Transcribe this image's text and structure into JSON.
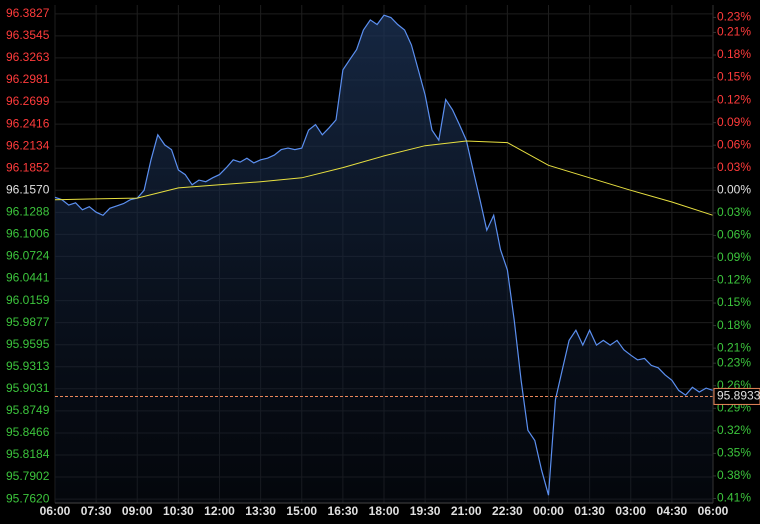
{
  "chart_data": {
    "type": "line",
    "base": 96.157,
    "positive_color": "#ff3b3b",
    "negative_color": "#3cc43c",
    "neutral_color": "#e0e0e0",
    "grid": true,
    "last_price": 95.8933,
    "last_price_color": "#e8865a",
    "xlim": [
      0,
      1440
    ],
    "xticks": [
      {
        "value": 0,
        "label": "06:00"
      },
      {
        "value": 90,
        "label": "07:30"
      },
      {
        "value": 180,
        "label": "09:00"
      },
      {
        "value": 270,
        "label": "10:30"
      },
      {
        "value": 360,
        "label": "12:00"
      },
      {
        "value": 450,
        "label": "13:30"
      },
      {
        "value": 540,
        "label": "15:00"
      },
      {
        "value": 630,
        "label": "16:30"
      },
      {
        "value": 720,
        "label": "18:00"
      },
      {
        "value": 810,
        "label": "19:30"
      },
      {
        "value": 900,
        "label": "21:00"
      },
      {
        "value": 990,
        "label": "22:30"
      },
      {
        "value": 1080,
        "label": "00:00"
      },
      {
        "value": 1170,
        "label": "01:30"
      },
      {
        "value": 1260,
        "label": "03:00"
      },
      {
        "value": 1350,
        "label": "04:30"
      },
      {
        "value": 1440,
        "label": "06:00"
      }
    ],
    "ylim": [
      95.757,
      96.394
    ],
    "yticks": [
      96.3827,
      96.3545,
      96.3263,
      96.2981,
      96.2699,
      96.2416,
      96.2134,
      96.1852,
      {
        "value": 96.157,
        "label": "96.1570"
      },
      96.1288,
      96.1006,
      96.0724,
      96.0441,
      96.0159,
      95.9877,
      95.9595,
      95.9313,
      95.9031,
      95.8749,
      95.8466,
      95.8184,
      95.7902,
      {
        "value": 95.762,
        "label": "95.7620"
      }
    ],
    "y2lim": [
      -0.416,
      0.2465
    ],
    "y2ticks": [
      {
        "value": 0.23,
        "label": "0.23%"
      },
      {
        "value": 0.21,
        "label": "0.21%"
      },
      {
        "value": 0.18,
        "label": "0.18%"
      },
      {
        "value": 0.15,
        "label": "0.15%"
      },
      {
        "value": 0.12,
        "label": "0.12%"
      },
      {
        "value": 0.09,
        "label": "0.09%"
      },
      {
        "value": 0.06,
        "label": "0.06%"
      },
      {
        "value": 0.03,
        "label": "0.03%"
      },
      {
        "value": 0,
        "label": "0.00%"
      },
      {
        "value": -0.03,
        "label": "0.03%"
      },
      {
        "value": -0.06,
        "label": "0.06%"
      },
      {
        "value": -0.09,
        "label": "0.09%"
      },
      {
        "value": -0.12,
        "label": "0.12%"
      },
      {
        "value": -0.15,
        "label": "0.15%"
      },
      {
        "value": -0.18,
        "label": "0.18%"
      },
      {
        "value": -0.21,
        "label": "0.21%"
      },
      {
        "value": -0.23,
        "label": "0.23%"
      },
      {
        "value": -0.26,
        "label": "0.26%"
      },
      {
        "value": -0.29,
        "label": "0.29%"
      },
      {
        "value": -0.32,
        "label": "0.32%"
      },
      {
        "value": -0.35,
        "label": "0.35%"
      },
      {
        "value": -0.38,
        "label": "0.38%"
      },
      {
        "value": -0.41,
        "label": "0.41%"
      }
    ],
    "series": [
      {
        "color": "#5b8ff0",
        "x": [
          0,
          15,
          30,
          45,
          60,
          75,
          90,
          105,
          120,
          135,
          150,
          165,
          180,
          195,
          210,
          225,
          240,
          255,
          270,
          285,
          300,
          315,
          330,
          345,
          360,
          375,
          390,
          405,
          420,
          435,
          450,
          465,
          480,
          495,
          510,
          525,
          540,
          555,
          570,
          585,
          600,
          615,
          630,
          645,
          660,
          675,
          690,
          705,
          720,
          735,
          750,
          765,
          780,
          795,
          810,
          825,
          840,
          855,
          870,
          885,
          900,
          915,
          930,
          945,
          960,
          975,
          990,
          1005,
          1020,
          1035,
          1050,
          1065,
          1080,
          1095,
          1110,
          1125,
          1140,
          1155,
          1170,
          1185,
          1200,
          1215,
          1230,
          1245,
          1260,
          1275,
          1290,
          1305,
          1320,
          1335,
          1350,
          1365,
          1380,
          1395,
          1410,
          1425,
          1440
        ],
        "values": [
          96.148,
          96.145,
          96.138,
          96.141,
          96.132,
          96.136,
          96.129,
          96.125,
          96.134,
          96.137,
          96.14,
          96.145,
          96.147,
          96.157,
          96.196,
          96.228,
          96.215,
          96.209,
          96.183,
          96.177,
          96.164,
          96.17,
          96.168,
          96.173,
          96.177,
          96.186,
          96.196,
          96.193,
          96.198,
          96.192,
          96.196,
          96.198,
          96.202,
          96.209,
          96.211,
          96.209,
          96.211,
          96.234,
          96.241,
          96.228,
          96.237,
          96.247,
          96.311,
          96.324,
          96.337,
          96.362,
          96.375,
          96.369,
          96.381,
          96.378,
          96.369,
          96.362,
          96.343,
          96.311,
          96.279,
          96.234,
          96.221,
          96.273,
          96.26,
          96.241,
          96.221,
          96.183,
          96.145,
          96.106,
          96.125,
          96.081,
          96.055,
          95.991,
          95.914,
          95.85,
          95.837,
          95.799,
          95.767,
          95.889,
          95.927,
          95.965,
          95.978,
          95.959,
          95.978,
          95.959,
          95.965,
          95.959,
          95.965,
          95.953,
          95.946,
          95.94,
          95.942,
          95.933,
          95.93,
          95.921,
          95.914,
          95.901,
          95.895,
          95.905,
          95.899,
          95.904,
          95.901
        ]
      },
      {
        "color": "#e8e040",
        "x": [
          0,
          90,
          180,
          270,
          360,
          450,
          540,
          630,
          720,
          810,
          900,
          990,
          1080,
          1170,
          1260,
          1350,
          1440
        ],
        "values": [
          96.145,
          96.146,
          96.147,
          96.16,
          96.164,
          96.168,
          96.173,
          96.186,
          96.201,
          96.214,
          96.22,
          96.218,
          96.189,
          96.173,
          96.157,
          96.142,
          96.125
        ]
      }
    ]
  }
}
